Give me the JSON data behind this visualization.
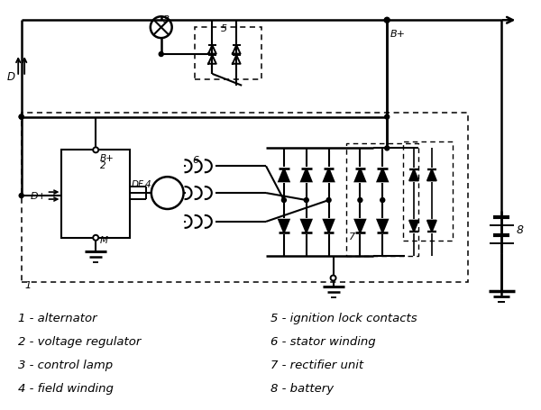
{
  "bg_color": "#ffffff",
  "legend_left": [
    "1 - alternator",
    "2 - voltage regulator",
    "3 - control lamp",
    "4 - field winding"
  ],
  "legend_right": [
    "5 - ignition lock contacts",
    "6 - stator winding",
    "7 - rectifier unit",
    "8 - battery"
  ],
  "label_fontsize": 9.5
}
